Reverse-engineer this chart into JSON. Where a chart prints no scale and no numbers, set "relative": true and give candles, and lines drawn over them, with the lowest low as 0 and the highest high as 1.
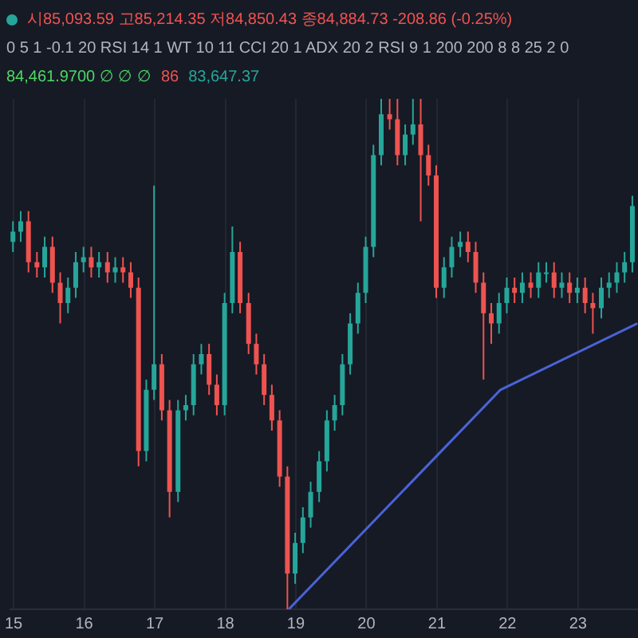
{
  "chart_data": {
    "type": "candlestick",
    "relative": true,
    "grid": "x",
    "legend": false,
    "annotations": [
      "시85,093.59 고85,214.35 저84,850.43 종84,884.73 -208.86 (-0.25%)",
      "0 5 1 -0.1 20 RSI 14 1 WT 10 11 CCI 20 1 ADX 20 2 RSI 9 1 200 200 8 8 25 2 0",
      "84,461.9700 ∅ ∅ ∅",
      "86",
      "83,647.37"
    ],
    "xlim": [
      14.95,
      23.85
    ],
    "xticks": [
      15,
      16,
      17,
      18,
      19,
      20,
      21,
      22,
      23
    ],
    "x": [
      14.99,
      15.1,
      15.21,
      15.33,
      15.44,
      15.55,
      15.66,
      15.77,
      15.88,
      15.99,
      16.1,
      16.21,
      16.33,
      16.44,
      16.55,
      16.66,
      16.77,
      16.88,
      16.99,
      17.1,
      17.21,
      17.33,
      17.44,
      17.55,
      17.66,
      17.77,
      17.88,
      17.99,
      18.1,
      18.21,
      18.33,
      18.44,
      18.55,
      18.66,
      18.77,
      18.88,
      18.99,
      19.1,
      19.21,
      19.33,
      19.44,
      19.55,
      19.66,
      19.77,
      19.88,
      19.99,
      20.1,
      20.21,
      20.33,
      20.44,
      20.55,
      20.66,
      20.77,
      20.88,
      20.99,
      21.1,
      21.21,
      21.33,
      21.44,
      21.55,
      21.66,
      21.77,
      21.88,
      21.99,
      22.1,
      22.21,
      22.33,
      22.44,
      22.55,
      22.66,
      22.77,
      22.88,
      22.99,
      23.1,
      23.21,
      23.33,
      23.44,
      23.55,
      23.66,
      23.77
    ],
    "ohlc": [
      [
        0.72,
        0.76,
        0.7,
        0.74
      ],
      [
        0.74,
        0.78,
        0.72,
        0.76
      ],
      [
        0.76,
        0.78,
        0.66,
        0.68
      ],
      [
        0.68,
        0.7,
        0.65,
        0.67
      ],
      [
        0.67,
        0.73,
        0.65,
        0.71
      ],
      [
        0.71,
        0.73,
        0.62,
        0.64
      ],
      [
        0.64,
        0.66,
        0.56,
        0.6
      ],
      [
        0.6,
        0.65,
        0.58,
        0.63
      ],
      [
        0.63,
        0.7,
        0.61,
        0.68
      ],
      [
        0.68,
        0.71,
        0.66,
        0.69
      ],
      [
        0.69,
        0.71,
        0.65,
        0.67
      ],
      [
        0.67,
        0.7,
        0.65,
        0.68
      ],
      [
        0.68,
        0.7,
        0.64,
        0.66
      ],
      [
        0.66,
        0.69,
        0.64,
        0.67
      ],
      [
        0.67,
        0.69,
        0.64,
        0.66
      ],
      [
        0.66,
        0.68,
        0.61,
        0.63
      ],
      [
        0.63,
        0.65,
        0.28,
        0.31
      ],
      [
        0.31,
        0.45,
        0.29,
        0.43
      ],
      [
        0.43,
        0.83,
        0.41,
        0.48
      ],
      [
        0.48,
        0.5,
        0.37,
        0.39
      ],
      [
        0.39,
        0.41,
        0.18,
        0.23
      ],
      [
        0.23,
        0.41,
        0.21,
        0.39
      ],
      [
        0.39,
        0.42,
        0.37,
        0.4
      ],
      [
        0.4,
        0.5,
        0.38,
        0.48
      ],
      [
        0.48,
        0.52,
        0.46,
        0.5
      ],
      [
        0.5,
        0.52,
        0.42,
        0.44
      ],
      [
        0.44,
        0.46,
        0.38,
        0.4
      ],
      [
        0.4,
        0.62,
        0.38,
        0.6
      ],
      [
        0.6,
        0.75,
        0.58,
        0.7
      ],
      [
        0.7,
        0.72,
        0.58,
        0.6
      ],
      [
        0.6,
        0.62,
        0.5,
        0.52
      ],
      [
        0.52,
        0.54,
        0.46,
        0.48
      ],
      [
        0.48,
        0.5,
        0.4,
        0.42
      ],
      [
        0.42,
        0.44,
        0.35,
        0.37
      ],
      [
        0.37,
        0.39,
        0.24,
        0.26
      ],
      [
        0.26,
        0.28,
        0,
        0.07
      ],
      [
        0.07,
        0.15,
        0.05,
        0.13
      ],
      [
        0.13,
        0.2,
        0.11,
        0.18
      ],
      [
        0.18,
        0.25,
        0.16,
        0.23
      ],
      [
        0.23,
        0.31,
        0.21,
        0.29
      ],
      [
        0.29,
        0.39,
        0.27,
        0.37
      ],
      [
        0.37,
        0.42,
        0.35,
        0.4
      ],
      [
        0.4,
        0.5,
        0.38,
        0.48
      ],
      [
        0.48,
        0.58,
        0.46,
        0.56
      ],
      [
        0.56,
        0.64,
        0.54,
        0.62
      ],
      [
        0.62,
        0.73,
        0.6,
        0.71
      ],
      [
        0.71,
        0.91,
        0.69,
        0.89
      ],
      [
        0.89,
        1,
        0.87,
        0.97
      ],
      [
        0.97,
        1,
        0.94,
        0.96
      ],
      [
        0.96,
        1,
        0.87,
        0.89
      ],
      [
        0.89,
        0.95,
        0.87,
        0.93
      ],
      [
        0.93,
        1,
        0.91,
        0.95
      ],
      [
        0.95,
        1,
        0.76,
        0.89
      ],
      [
        0.89,
        0.91,
        0.83,
        0.85
      ],
      [
        0.85,
        0.87,
        0.61,
        0.63
      ],
      [
        0.63,
        0.69,
        0.61,
        0.67
      ],
      [
        0.67,
        0.73,
        0.65,
        0.71
      ],
      [
        0.71,
        0.74,
        0.69,
        0.72
      ],
      [
        0.72,
        0.74,
        0.68,
        0.7
      ],
      [
        0.7,
        0.72,
        0.62,
        0.64
      ],
      [
        0.64,
        0.66,
        0.45,
        0.58
      ],
      [
        0.58,
        0.6,
        0.52,
        0.56
      ],
      [
        0.56,
        0.62,
        0.54,
        0.6
      ],
      [
        0.6,
        0.65,
        0.58,
        0.63
      ],
      [
        0.63,
        0.65,
        0.6,
        0.62
      ],
      [
        0.62,
        0.66,
        0.6,
        0.64
      ],
      [
        0.64,
        0.66,
        0.61,
        0.63
      ],
      [
        0.63,
        0.68,
        0.61,
        0.66
      ],
      [
        0.66,
        0.68,
        0.64,
        0.66
      ],
      [
        0.66,
        0.68,
        0.61,
        0.63
      ],
      [
        0.63,
        0.66,
        0.61,
        0.64
      ],
      [
        0.64,
        0.66,
        0.6,
        0.62
      ],
      [
        0.62,
        0.65,
        0.6,
        0.63
      ],
      [
        0.63,
        0.65,
        0.58,
        0.6
      ],
      [
        0.6,
        0.62,
        0.54,
        0.59
      ],
      [
        0.59,
        0.65,
        0.57,
        0.63
      ],
      [
        0.63,
        0.66,
        0.61,
        0.64
      ],
      [
        0.64,
        0.68,
        0.62,
        0.66
      ],
      [
        0.66,
        0.7,
        0.64,
        0.68
      ],
      [
        0.68,
        0.81,
        0.66,
        0.79
      ]
    ],
    "series": [
      {
        "type": "line",
        "color": "#4a63d8",
        "x": [
          18.9,
          21.9,
          23.84
        ],
        "values": [
          0,
          0.43,
          0.56
        ]
      }
    ]
  }
}
